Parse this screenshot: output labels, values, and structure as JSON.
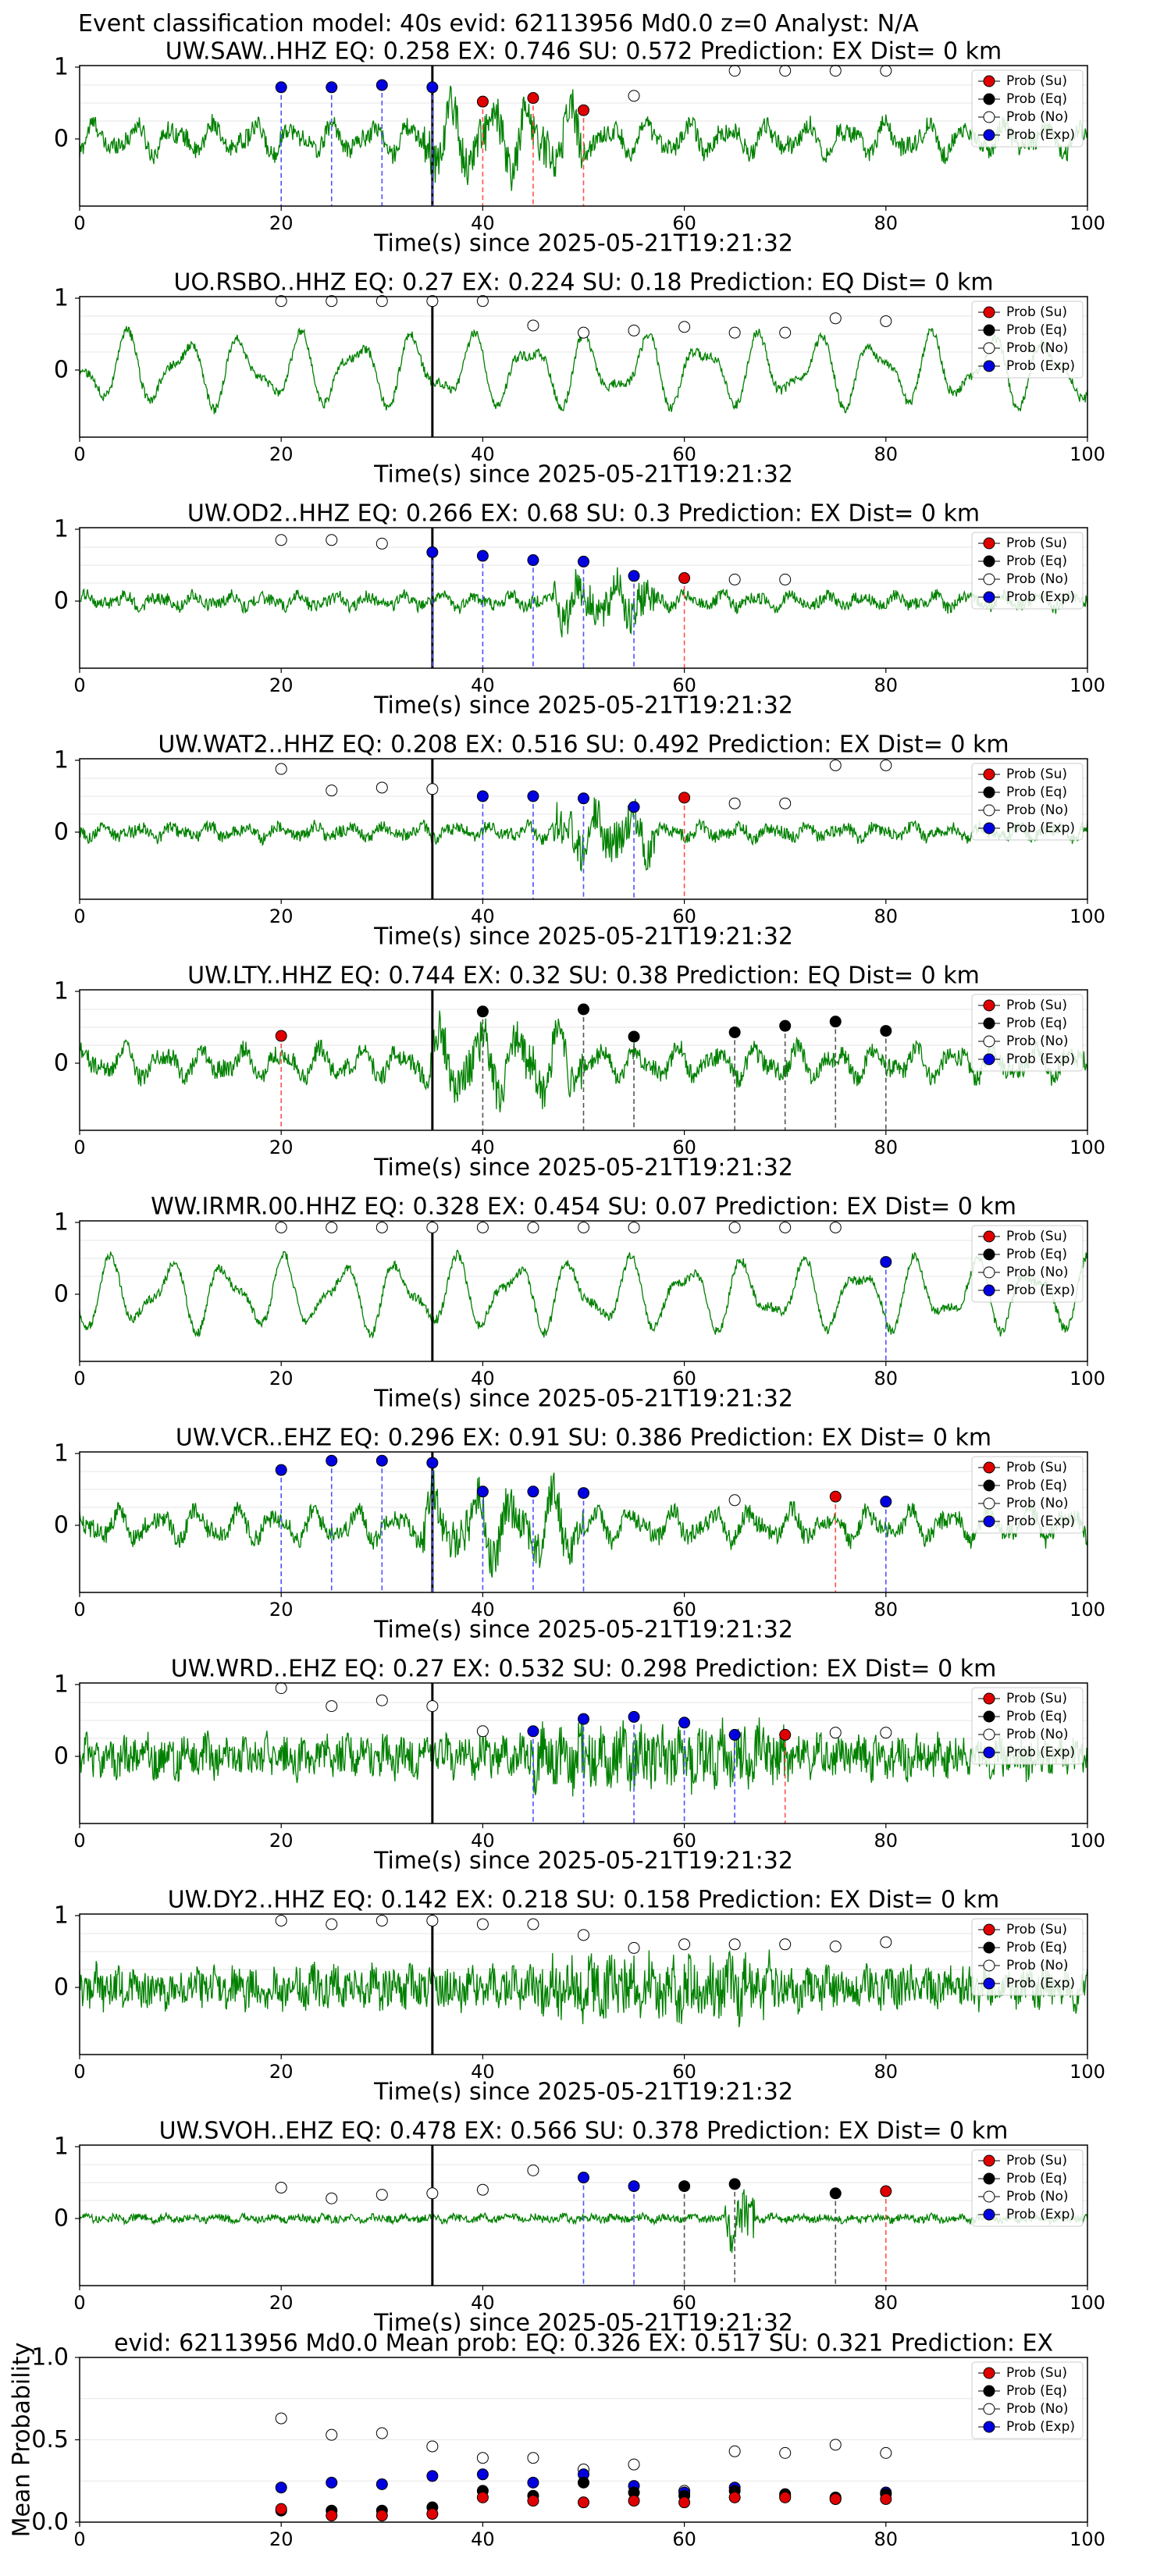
{
  "header": "Event classification model: 40s evid: 62113956 Md0.0 z=0 Analyst: N/A",
  "colors": {
    "trace": "#008000",
    "su": "#e00000",
    "eq": "#000000",
    "no": "#ffffff",
    "exp": "#0000e0",
    "su_line": "#ff5050",
    "exp_line": "#5050ff",
    "eq_line": "#555555",
    "onset": "#000000"
  },
  "legend": [
    "Prob (Su)",
    "Prob (Eq)",
    "Prob (No)",
    "Prob (Exp)"
  ],
  "chart_data": [
    {
      "type": "scatter",
      "title": "UW.SAW..HHZ   EQ: 0.258  EX: 0.746  SU: 0.572   Prediction: EX    Dist= 0 km",
      "xlabel": "Time(s) since 2025-05-21T19:21:32",
      "xlim": [
        0,
        100
      ],
      "xticks": [
        0,
        20,
        40,
        60,
        80,
        100
      ],
      "yticks": [
        1,
        0
      ],
      "onset": 35,
      "amp": "mixed",
      "points": [
        {
          "x": 20,
          "y": 0.72,
          "cls": "exp"
        },
        {
          "x": 25,
          "y": 0.72,
          "cls": "exp"
        },
        {
          "x": 30,
          "y": 0.75,
          "cls": "exp"
        },
        {
          "x": 35,
          "y": 0.72,
          "cls": "exp"
        },
        {
          "x": 40,
          "y": 0.52,
          "cls": "su"
        },
        {
          "x": 45,
          "y": 0.57,
          "cls": "su"
        },
        {
          "x": 50,
          "y": 0.4,
          "cls": "su"
        },
        {
          "x": 55,
          "y": 0.6,
          "cls": "no"
        },
        {
          "x": 65,
          "y": 0.95,
          "cls": "no"
        },
        {
          "x": 70,
          "y": 0.95,
          "cls": "no"
        },
        {
          "x": 75,
          "y": 0.95,
          "cls": "no"
        },
        {
          "x": 80,
          "y": 0.95,
          "cls": "no"
        }
      ]
    },
    {
      "type": "scatter",
      "title": "UO.RSBO..HHZ   EQ: 0.27  EX: 0.224  SU: 0.18   Prediction: EQ    Dist= 0 km",
      "xlabel": "Time(s) since 2025-05-21T19:21:32",
      "xlim": [
        0,
        100
      ],
      "xticks": [
        0,
        20,
        40,
        60,
        80,
        100
      ],
      "yticks": [
        1,
        0
      ],
      "onset": 35,
      "amp": "slow",
      "points": [
        {
          "x": 20,
          "y": 0.96,
          "cls": "no"
        },
        {
          "x": 25,
          "y": 0.96,
          "cls": "no"
        },
        {
          "x": 30,
          "y": 0.96,
          "cls": "no"
        },
        {
          "x": 35,
          "y": 0.96,
          "cls": "no"
        },
        {
          "x": 40,
          "y": 0.96,
          "cls": "no"
        },
        {
          "x": 45,
          "y": 0.62,
          "cls": "no"
        },
        {
          "x": 50,
          "y": 0.52,
          "cls": "no"
        },
        {
          "x": 55,
          "y": 0.55,
          "cls": "no"
        },
        {
          "x": 60,
          "y": 0.6,
          "cls": "no"
        },
        {
          "x": 65,
          "y": 0.52,
          "cls": "no"
        },
        {
          "x": 70,
          "y": 0.52,
          "cls": "no"
        },
        {
          "x": 75,
          "y": 0.72,
          "cls": "no"
        },
        {
          "x": 80,
          "y": 0.68,
          "cls": "no"
        }
      ]
    },
    {
      "type": "scatter",
      "title": "UW.OD2..HHZ   EQ: 0.266  EX: 0.68  SU: 0.3   Prediction: EX    Dist= 0 km",
      "xlabel": "Time(s) since 2025-05-21T19:21:32",
      "xlim": [
        0,
        100
      ],
      "xticks": [
        0,
        20,
        40,
        60,
        80,
        100
      ],
      "yticks": [
        1,
        0
      ],
      "onset": 35,
      "amp": "burst",
      "points": [
        {
          "x": 20,
          "y": 0.85,
          "cls": "no"
        },
        {
          "x": 25,
          "y": 0.85,
          "cls": "no"
        },
        {
          "x": 30,
          "y": 0.8,
          "cls": "no"
        },
        {
          "x": 35,
          "y": 0.68,
          "cls": "exp"
        },
        {
          "x": 40,
          "y": 0.63,
          "cls": "exp"
        },
        {
          "x": 45,
          "y": 0.57,
          "cls": "exp"
        },
        {
          "x": 50,
          "y": 0.55,
          "cls": "exp"
        },
        {
          "x": 55,
          "y": 0.35,
          "cls": "exp"
        },
        {
          "x": 60,
          "y": 0.32,
          "cls": "su"
        },
        {
          "x": 65,
          "y": 0.3,
          "cls": "no"
        },
        {
          "x": 70,
          "y": 0.3,
          "cls": "no"
        }
      ]
    },
    {
      "type": "scatter",
      "title": "UW.WAT2..HHZ   EQ: 0.208  EX: 0.516  SU: 0.492   Prediction: EX    Dist= 0 km",
      "xlabel": "Time(s) since 2025-05-21T19:21:32",
      "xlim": [
        0,
        100
      ],
      "xticks": [
        0,
        20,
        40,
        60,
        80,
        100
      ],
      "yticks": [
        1,
        0
      ],
      "onset": 35,
      "amp": "burst",
      "points": [
        {
          "x": 20,
          "y": 0.88,
          "cls": "no"
        },
        {
          "x": 25,
          "y": 0.58,
          "cls": "no"
        },
        {
          "x": 30,
          "y": 0.62,
          "cls": "no"
        },
        {
          "x": 35,
          "y": 0.6,
          "cls": "no"
        },
        {
          "x": 40,
          "y": 0.5,
          "cls": "exp"
        },
        {
          "x": 45,
          "y": 0.5,
          "cls": "exp"
        },
        {
          "x": 50,
          "y": 0.47,
          "cls": "exp"
        },
        {
          "x": 55,
          "y": 0.35,
          "cls": "exp"
        },
        {
          "x": 60,
          "y": 0.48,
          "cls": "su"
        },
        {
          "x": 65,
          "y": 0.4,
          "cls": "no"
        },
        {
          "x": 70,
          "y": 0.4,
          "cls": "no"
        },
        {
          "x": 75,
          "y": 0.93,
          "cls": "no"
        },
        {
          "x": 80,
          "y": 0.93,
          "cls": "no"
        }
      ]
    },
    {
      "type": "scatter",
      "title": "UW.LTY..HHZ   EQ: 0.744  EX: 0.32  SU: 0.38   Prediction: EQ    Dist= 0 km",
      "xlabel": "Time(s) since 2025-05-21T19:21:32",
      "xlim": [
        0,
        100
      ],
      "xticks": [
        0,
        20,
        40,
        60,
        80,
        100
      ],
      "yticks": [
        1,
        0
      ],
      "onset": 35,
      "amp": "mixed",
      "points": [
        {
          "x": 20,
          "y": 0.38,
          "cls": "su"
        },
        {
          "x": 40,
          "y": 0.72,
          "cls": "eq"
        },
        {
          "x": 50,
          "y": 0.75,
          "cls": "eq"
        },
        {
          "x": 55,
          "y": 0.37,
          "cls": "eq"
        },
        {
          "x": 65,
          "y": 0.43,
          "cls": "eq"
        },
        {
          "x": 70,
          "y": 0.52,
          "cls": "eq"
        },
        {
          "x": 75,
          "y": 0.58,
          "cls": "eq"
        },
        {
          "x": 80,
          "y": 0.45,
          "cls": "eq"
        }
      ]
    },
    {
      "type": "scatter",
      "title": "WW.IRMR.00.HHZ   EQ: 0.328  EX: 0.454  SU: 0.07   Prediction: EX    Dist= 0 km",
      "xlabel": "Time(s) since 2025-05-21T19:21:32",
      "xlim": [
        0,
        100
      ],
      "xticks": [
        0,
        20,
        40,
        60,
        80,
        100
      ],
      "yticks": [
        1,
        0
      ],
      "onset": 35,
      "amp": "slow",
      "points": [
        {
          "x": 20,
          "y": 0.93,
          "cls": "no"
        },
        {
          "x": 25,
          "y": 0.93,
          "cls": "no"
        },
        {
          "x": 30,
          "y": 0.93,
          "cls": "no"
        },
        {
          "x": 35,
          "y": 0.93,
          "cls": "no"
        },
        {
          "x": 40,
          "y": 0.93,
          "cls": "no"
        },
        {
          "x": 45,
          "y": 0.93,
          "cls": "no"
        },
        {
          "x": 50,
          "y": 0.93,
          "cls": "no"
        },
        {
          "x": 55,
          "y": 0.93,
          "cls": "no"
        },
        {
          "x": 65,
          "y": 0.93,
          "cls": "no"
        },
        {
          "x": 70,
          "y": 0.93,
          "cls": "no"
        },
        {
          "x": 75,
          "y": 0.93,
          "cls": "no"
        },
        {
          "x": 80,
          "y": 0.45,
          "cls": "exp"
        }
      ]
    },
    {
      "type": "scatter",
      "title": "UW.VCR..EHZ   EQ: 0.296  EX: 0.91  SU: 0.386   Prediction: EX    Dist= 0 km",
      "xlabel": "Time(s) since 2025-05-21T19:21:32",
      "xlim": [
        0,
        100
      ],
      "xticks": [
        0,
        20,
        40,
        60,
        80,
        100
      ],
      "yticks": [
        1,
        0
      ],
      "onset": 35,
      "amp": "mixed",
      "points": [
        {
          "x": 20,
          "y": 0.77,
          "cls": "exp"
        },
        {
          "x": 25,
          "y": 0.9,
          "cls": "exp"
        },
        {
          "x": 30,
          "y": 0.9,
          "cls": "exp"
        },
        {
          "x": 35,
          "y": 0.87,
          "cls": "exp"
        },
        {
          "x": 40,
          "y": 0.47,
          "cls": "exp"
        },
        {
          "x": 45,
          "y": 0.47,
          "cls": "exp"
        },
        {
          "x": 50,
          "y": 0.45,
          "cls": "exp"
        },
        {
          "x": 65,
          "y": 0.35,
          "cls": "no"
        },
        {
          "x": 75,
          "y": 0.4,
          "cls": "su"
        },
        {
          "x": 80,
          "y": 0.33,
          "cls": "exp"
        }
      ]
    },
    {
      "type": "scatter",
      "title": "UW.WRD..EHZ   EQ: 0.27  EX: 0.532  SU: 0.298   Prediction: EX    Dist= 0 km",
      "xlabel": "Time(s) since 2025-05-21T19:21:32",
      "xlim": [
        0,
        100
      ],
      "xticks": [
        0,
        20,
        40,
        60,
        80,
        100
      ],
      "yticks": [
        1,
        0
      ],
      "onset": 35,
      "amp": "noisy",
      "points": [
        {
          "x": 20,
          "y": 0.95,
          "cls": "no"
        },
        {
          "x": 25,
          "y": 0.7,
          "cls": "no"
        },
        {
          "x": 30,
          "y": 0.78,
          "cls": "no"
        },
        {
          "x": 35,
          "y": 0.7,
          "cls": "no"
        },
        {
          "x": 40,
          "y": 0.35,
          "cls": "no"
        },
        {
          "x": 45,
          "y": 0.35,
          "cls": "exp"
        },
        {
          "x": 50,
          "y": 0.52,
          "cls": "exp"
        },
        {
          "x": 55,
          "y": 0.55,
          "cls": "exp"
        },
        {
          "x": 60,
          "y": 0.47,
          "cls": "exp"
        },
        {
          "x": 65,
          "y": 0.3,
          "cls": "exp"
        },
        {
          "x": 70,
          "y": 0.3,
          "cls": "su"
        },
        {
          "x": 75,
          "y": 0.33,
          "cls": "no"
        },
        {
          "x": 80,
          "y": 0.33,
          "cls": "no"
        }
      ]
    },
    {
      "type": "scatter",
      "title": "UW.DY2..HHZ   EQ: 0.142  EX: 0.218  SU: 0.158   Prediction: EX    Dist= 0 km",
      "xlabel": "Time(s) since 2025-05-21T19:21:32",
      "xlim": [
        0,
        100
      ],
      "xticks": [
        0,
        20,
        40,
        60,
        80,
        100
      ],
      "yticks": [
        1,
        0
      ],
      "onset": 35,
      "amp": "noisy",
      "points": [
        {
          "x": 20,
          "y": 0.93,
          "cls": "no"
        },
        {
          "x": 25,
          "y": 0.88,
          "cls": "no"
        },
        {
          "x": 30,
          "y": 0.93,
          "cls": "no"
        },
        {
          "x": 35,
          "y": 0.93,
          "cls": "no"
        },
        {
          "x": 40,
          "y": 0.88,
          "cls": "no"
        },
        {
          "x": 45,
          "y": 0.88,
          "cls": "no"
        },
        {
          "x": 50,
          "y": 0.73,
          "cls": "no"
        },
        {
          "x": 55,
          "y": 0.55,
          "cls": "no"
        },
        {
          "x": 60,
          "y": 0.6,
          "cls": "no"
        },
        {
          "x": 65,
          "y": 0.6,
          "cls": "no"
        },
        {
          "x": 70,
          "y": 0.6,
          "cls": "no"
        },
        {
          "x": 75,
          "y": 0.57,
          "cls": "no"
        },
        {
          "x": 80,
          "y": 0.63,
          "cls": "no"
        }
      ]
    },
    {
      "type": "scatter",
      "title": "UW.SVOH..EHZ   EQ: 0.478  EX: 0.566  SU: 0.378   Prediction: EX    Dist= 0 km",
      "xlabel": "Time(s) since 2025-05-21T19:21:32",
      "xlim": [
        0,
        100
      ],
      "xticks": [
        0,
        20,
        40,
        60,
        80,
        100
      ],
      "yticks": [
        1,
        0
      ],
      "onset": 35,
      "amp": "quiet",
      "points": [
        {
          "x": 20,
          "y": 0.43,
          "cls": "no"
        },
        {
          "x": 25,
          "y": 0.28,
          "cls": "no"
        },
        {
          "x": 30,
          "y": 0.33,
          "cls": "no"
        },
        {
          "x": 35,
          "y": 0.35,
          "cls": "no"
        },
        {
          "x": 40,
          "y": 0.4,
          "cls": "no"
        },
        {
          "x": 45,
          "y": 0.67,
          "cls": "no"
        },
        {
          "x": 50,
          "y": 0.57,
          "cls": "exp"
        },
        {
          "x": 55,
          "y": 0.45,
          "cls": "exp"
        },
        {
          "x": 60,
          "y": 0.45,
          "cls": "eq"
        },
        {
          "x": 65,
          "y": 0.48,
          "cls": "eq"
        },
        {
          "x": 75,
          "y": 0.35,
          "cls": "eq"
        },
        {
          "x": 80,
          "y": 0.38,
          "cls": "su"
        }
      ]
    },
    {
      "type": "scatter",
      "title": "evid: 62113956  Md0.0   Mean prob:   EQ: 0.326  EX: 0.517  SU: 0.321   Prediction: EX",
      "ylabel": "Mean Probability",
      "xlim": [
        0,
        100
      ],
      "ylim": [
        0,
        1
      ],
      "xticks": [
        0,
        20,
        40,
        60,
        80,
        100
      ],
      "yticks": [
        1.0,
        0.5,
        0.0
      ],
      "series": [
        {
          "name": "Prob (No)",
          "cls": "no",
          "x": [
            20,
            25,
            30,
            35,
            40,
            45,
            50,
            55,
            60,
            65,
            70,
            75,
            80
          ],
          "y": [
            0.63,
            0.53,
            0.54,
            0.46,
            0.39,
            0.39,
            0.32,
            0.35,
            0.19,
            0.43,
            0.42,
            0.47,
            0.42
          ]
        },
        {
          "name": "Prob (Exp)",
          "cls": "exp",
          "x": [
            20,
            25,
            30,
            35,
            40,
            45,
            50,
            55,
            60,
            65,
            70,
            75,
            80
          ],
          "y": [
            0.21,
            0.24,
            0.23,
            0.28,
            0.29,
            0.24,
            0.29,
            0.22,
            0.18,
            0.21,
            0.16,
            0.14,
            0.18
          ]
        },
        {
          "name": "Prob (Eq)",
          "cls": "eq",
          "x": [
            20,
            25,
            30,
            35,
            40,
            45,
            50,
            55,
            60,
            65,
            70,
            75,
            80
          ],
          "y": [
            0.07,
            0.07,
            0.07,
            0.09,
            0.19,
            0.16,
            0.24,
            0.18,
            0.16,
            0.19,
            0.17,
            0.15,
            0.17
          ]
        },
        {
          "name": "Prob (Su)",
          "cls": "su",
          "x": [
            20,
            25,
            30,
            35,
            40,
            45,
            50,
            55,
            60,
            65,
            70,
            75,
            80
          ],
          "y": [
            0.08,
            0.04,
            0.04,
            0.05,
            0.15,
            0.13,
            0.12,
            0.13,
            0.12,
            0.15,
            0.15,
            0.14,
            0.14
          ]
        }
      ]
    }
  ]
}
